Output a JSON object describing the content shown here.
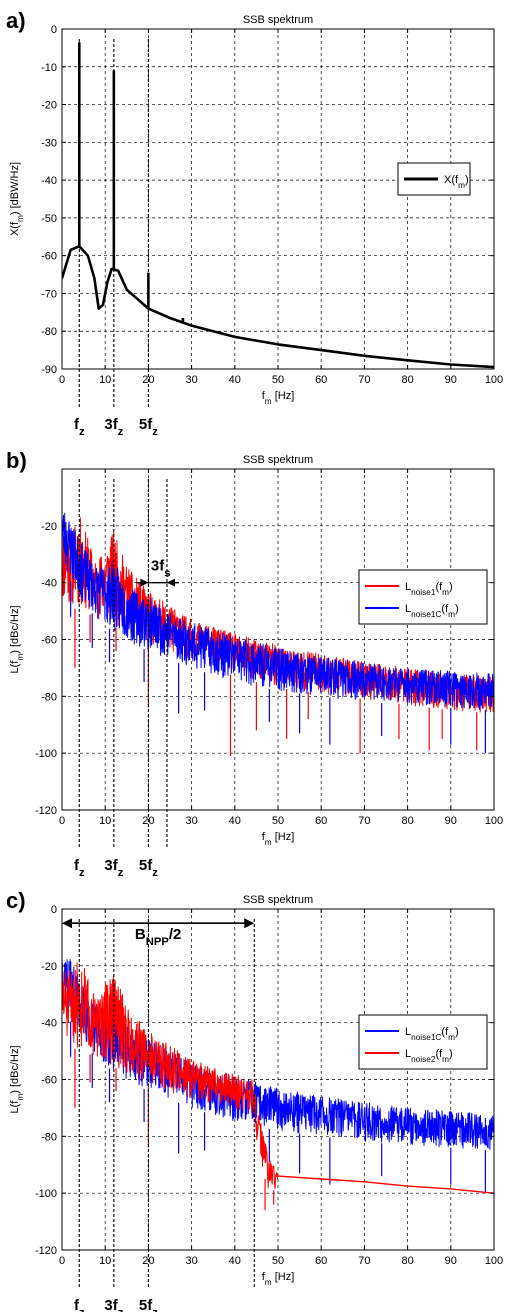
{
  "colors": {
    "red": "#ff0000",
    "blue": "#0000ff",
    "black": "#000000"
  },
  "chart_data": [
    {
      "panel_label": "a)",
      "type": "line",
      "title": "SSB spektrum",
      "xlabel": {
        "base": "f",
        "sub": "m",
        "rest": " [Hz]"
      },
      "ylabel": {
        "base": "X(f",
        "sub": "m",
        "rest": ") [dBW/Hz]"
      },
      "xlim": [
        0,
        100
      ],
      "ylim": [
        -90,
        0
      ],
      "xticks": [
        "0",
        "10",
        "20",
        "30",
        "40",
        "50",
        "60",
        "70",
        "80",
        "90",
        "100"
      ],
      "yticks": [
        "0",
        "-10",
        "-20",
        "-30",
        "-40",
        "-50",
        "-60",
        "-70",
        "-80",
        "-90"
      ],
      "grid": true,
      "legend_position": "right",
      "series": [
        {
          "name": {
            "base": "X(f",
            "sub": "m",
            "rest": ")"
          },
          "color": "#000000",
          "kind": "smooth",
          "x": [
            0,
            2,
            4,
            6,
            7.5,
            8.5,
            9.5,
            10.5,
            11.5,
            13,
            15,
            17,
            20,
            25,
            30,
            40,
            50,
            60,
            70,
            80,
            90,
            100
          ],
          "y": [
            -66,
            -58.5,
            -57.5,
            -60,
            -66,
            -74,
            -73,
            -67,
            -63.5,
            -64,
            -69,
            -71,
            -74,
            -76.5,
            -78.5,
            -81.5,
            -83.5,
            -85,
            -86.5,
            -87.7,
            -88.8,
            -89.5
          ],
          "peaks": [
            {
              "x": 4,
              "y": -3.5
            },
            {
              "x": 12,
              "y": -11
            },
            {
              "x": 20,
              "y": -64.5
            },
            {
              "x": 28,
              "y": -76.5
            }
          ]
        }
      ],
      "vertical_markers": [
        {
          "x": 4,
          "label": {
            "base": "f",
            "sub": "z",
            "pre": ""
          }
        },
        {
          "x": 12,
          "label": {
            "base": "f",
            "sub": "z",
            "pre": "3"
          }
        },
        {
          "x": 20,
          "label": {
            "base": "f",
            "sub": "z",
            "pre": "5"
          }
        }
      ]
    },
    {
      "panel_label": "b)",
      "type": "line",
      "title": "SSB spektrum",
      "xlabel": {
        "base": "f",
        "sub": "m",
        "rest": " [Hz]"
      },
      "ylabel": {
        "base": "L(f",
        "sub": "m",
        "rest": ") [dBc/Hz]"
      },
      "xlim": [
        0,
        100
      ],
      "ylim": [
        -120,
        0
      ],
      "xticks": [
        "0",
        "10",
        "20",
        "30",
        "40",
        "50",
        "60",
        "70",
        "80",
        "90",
        "100"
      ],
      "yticks": [
        "-20",
        "-40",
        "-60",
        "-80",
        "-100",
        "-120"
      ],
      "grid": true,
      "legend_position": "right",
      "series": [
        {
          "name": {
            "base": "L",
            "sub": "noise1",
            "rest": "(f",
            "sub2": "m",
            "rest2": ")"
          },
          "color": "#ff0000",
          "kind": "noise",
          "seed": 11,
          "step": 0.07,
          "cutoff": 100,
          "upper": [
            [
              0,
              -20
            ],
            [
              2,
              -22
            ],
            [
              4,
              -16
            ],
            [
              6,
              -24
            ],
            [
              8,
              -33
            ],
            [
              10,
              -26
            ],
            [
              12,
              -22
            ],
            [
              14,
              -30
            ],
            [
              16,
              -36
            ],
            [
              20,
              -43
            ],
            [
              25,
              -48
            ],
            [
              30,
              -53
            ],
            [
              40,
              -58
            ],
            [
              50,
              -62
            ],
            [
              60,
              -65
            ],
            [
              70,
              -68
            ],
            [
              80,
              -70
            ],
            [
              90,
              -72
            ],
            [
              100,
              -73
            ]
          ],
          "lower": [
            [
              0,
              -48
            ],
            [
              5,
              -50
            ],
            [
              10,
              -54
            ],
            [
              15,
              -58
            ],
            [
              20,
              -62
            ],
            [
              30,
              -67
            ],
            [
              40,
              -73
            ],
            [
              50,
              -77
            ],
            [
              60,
              -79
            ],
            [
              70,
              -81
            ],
            [
              80,
              -83
            ],
            [
              90,
              -85
            ],
            [
              100,
              -86
            ]
          ],
          "spikes": [
            [
              3,
              -70
            ],
            [
              6.5,
              -61
            ],
            [
              12.5,
              -64
            ],
            [
              20,
              -84
            ],
            [
              39,
              -101
            ],
            [
              45,
              -92
            ],
            [
              52,
              -95
            ],
            [
              57,
              -88
            ],
            [
              69,
              -100
            ],
            [
              78,
              -95
            ],
            [
              85,
              -99
            ],
            [
              88,
              -95
            ],
            [
              96,
              -99
            ]
          ]
        },
        {
          "name": {
            "base": "L",
            "sub": "noise1C",
            "rest": "(f",
            "sub2": "m",
            "rest2": ")"
          },
          "color": "#0000ff",
          "kind": "noise",
          "seed": 23,
          "step": 0.07,
          "cutoff": 100,
          "upper": [
            [
              0,
              -12
            ],
            [
              2,
              -18
            ],
            [
              4,
              -24
            ],
            [
              6,
              -30
            ],
            [
              8,
              -34
            ],
            [
              10,
              -34
            ],
            [
              12,
              -32
            ],
            [
              14,
              -38
            ],
            [
              16,
              -42
            ],
            [
              20,
              -45
            ],
            [
              25,
              -50
            ],
            [
              30,
              -54
            ],
            [
              40,
              -59
            ],
            [
              50,
              -63
            ],
            [
              60,
              -66
            ],
            [
              70,
              -68
            ],
            [
              80,
              -70
            ],
            [
              90,
              -71
            ],
            [
              100,
              -72
            ]
          ],
          "lower": [
            [
              0,
              -34
            ],
            [
              5,
              -48
            ],
            [
              10,
              -55
            ],
            [
              15,
              -61
            ],
            [
              20,
              -64
            ],
            [
              30,
              -70
            ],
            [
              40,
              -75
            ],
            [
              50,
              -78
            ],
            [
              60,
              -80
            ],
            [
              70,
              -82
            ],
            [
              80,
              -83
            ],
            [
              90,
              -84
            ],
            [
              100,
              -85
            ]
          ],
          "spikes": [
            [
              2,
              -52
            ],
            [
              7,
              -63
            ],
            [
              11,
              -68
            ],
            [
              19,
              -75
            ],
            [
              27,
              -86
            ],
            [
              33,
              -85
            ],
            [
              48,
              -89
            ],
            [
              55,
              -93
            ],
            [
              62,
              -97
            ],
            [
              74,
              -94
            ],
            [
              90,
              -97
            ],
            [
              98,
              -100
            ]
          ]
        }
      ],
      "vertical_markers": [
        {
          "x": 4,
          "label": {
            "base": "f",
            "sub": "z",
            "pre": ""
          }
        },
        {
          "x": 12,
          "label": {
            "base": "f",
            "sub": "z",
            "pre": "3"
          }
        },
        {
          "x": 20,
          "label": {
            "base": "f",
            "sub": "z",
            "pre": "5"
          }
        },
        {
          "x": 24.3,
          "label": null
        }
      ],
      "annotations": [
        {
          "kind": "double-arrow-in",
          "x1": 20,
          "x2": 24.3,
          "y": -40,
          "label": {
            "base": "f",
            "sub": "s",
            "pre": "3"
          }
        }
      ]
    },
    {
      "panel_label": "c)",
      "type": "line",
      "title": "SSB spektrum",
      "xlabel": {
        "base": "f",
        "sub": "m",
        "rest": " [Hz]"
      },
      "ylabel": {
        "base": "L(f",
        "sub": "m",
        "rest": ") [dBc/Hz]"
      },
      "xlim": [
        0,
        100
      ],
      "ylim": [
        -120,
        0
      ],
      "xticks": [
        "0",
        "10",
        "20",
        "30",
        "40",
        "50",
        "60",
        "70",
        "80",
        "90",
        "100"
      ],
      "yticks": [
        "0",
        "-20",
        "-40",
        "-60",
        "-80",
        "-100",
        "-120"
      ],
      "grid": true,
      "legend_position": "right",
      "series": [
        {
          "name": {
            "base": "L",
            "sub": "noise1C",
            "rest": "(f",
            "sub2": "m",
            "rest2": ")"
          },
          "color": "#0000ff",
          "kind": "noise",
          "seed": 37,
          "step": 0.07,
          "cutoff": 100,
          "upper": [
            [
              0,
              -12
            ],
            [
              2,
              -18
            ],
            [
              4,
              -24
            ],
            [
              6,
              -30
            ],
            [
              8,
              -34
            ],
            [
              10,
              -34
            ],
            [
              12,
              -32
            ],
            [
              14,
              -38
            ],
            [
              16,
              -42
            ],
            [
              20,
              -45
            ],
            [
              25,
              -50
            ],
            [
              30,
              -54
            ],
            [
              40,
              -59
            ],
            [
              50,
              -63
            ],
            [
              60,
              -66
            ],
            [
              70,
              -68
            ],
            [
              80,
              -70
            ],
            [
              90,
              -71
            ],
            [
              100,
              -72
            ]
          ],
          "lower": [
            [
              0,
              -34
            ],
            [
              5,
              -48
            ],
            [
              10,
              -55
            ],
            [
              15,
              -61
            ],
            [
              20,
              -64
            ],
            [
              30,
              -70
            ],
            [
              40,
              -75
            ],
            [
              50,
              -78
            ],
            [
              60,
              -80
            ],
            [
              70,
              -82
            ],
            [
              80,
              -83
            ],
            [
              90,
              -84
            ],
            [
              100,
              -85
            ]
          ],
          "spikes": [
            [
              2,
              -52
            ],
            [
              7,
              -63
            ],
            [
              11,
              -68
            ],
            [
              19,
              -75
            ],
            [
              27,
              -86
            ],
            [
              33,
              -85
            ],
            [
              48,
              -89
            ],
            [
              55,
              -93
            ],
            [
              62,
              -97
            ],
            [
              74,
              -94
            ],
            [
              90,
              -97
            ],
            [
              98,
              -100
            ]
          ]
        },
        {
          "name": {
            "base": "L",
            "sub": "noise2",
            "rest": "(f",
            "sub2": "m",
            "rest2": ")"
          },
          "color": "#ff0000",
          "kind": "noise",
          "seed": 51,
          "step": 0.07,
          "cutoff": 50,
          "upper": [
            [
              0,
              -20
            ],
            [
              2,
              -22
            ],
            [
              4,
              -16
            ],
            [
              6,
              -24
            ],
            [
              8,
              -33
            ],
            [
              10,
              -26
            ],
            [
              12,
              -22
            ],
            [
              14,
              -30
            ],
            [
              16,
              -36
            ],
            [
              20,
              -43
            ],
            [
              25,
              -48
            ],
            [
              30,
              -53
            ],
            [
              40,
              -58
            ],
            [
              44,
              -60
            ],
            [
              46,
              -75
            ],
            [
              48,
              -88
            ],
            [
              50,
              -93
            ]
          ],
          "lower": [
            [
              0,
              -48
            ],
            [
              5,
              -50
            ],
            [
              10,
              -54
            ],
            [
              15,
              -58
            ],
            [
              20,
              -62
            ],
            [
              30,
              -67
            ],
            [
              40,
              -71
            ],
            [
              44,
              -73
            ],
            [
              46,
              -90
            ],
            [
              48,
              -100
            ],
            [
              50,
              -98
            ]
          ],
          "spikes": [
            [
              3,
              -70
            ],
            [
              6.5,
              -61
            ],
            [
              12.5,
              -64
            ],
            [
              20,
              -84
            ],
            [
              47,
              -106
            ],
            [
              49,
              -104
            ]
          ],
          "tail_x": [
            50,
            60,
            70,
            80,
            90,
            100
          ],
          "tail_y": [
            -94,
            -95,
            -96,
            -97.5,
            -98.5,
            -100
          ]
        }
      ],
      "vertical_markers": [
        {
          "x": 4,
          "label": {
            "base": "f",
            "sub": "z",
            "pre": ""
          }
        },
        {
          "x": 12,
          "label": {
            "base": "f",
            "sub": "z",
            "pre": "3"
          }
        },
        {
          "x": 20,
          "label": {
            "base": "f",
            "sub": "z",
            "pre": "5"
          }
        },
        {
          "x": 44.5,
          "label": null
        }
      ],
      "annotations": [
        {
          "kind": "double-arrow-out",
          "x1": 0,
          "x2": 44.5,
          "y": -5,
          "label": {
            "base": "B",
            "sub": "NPP",
            "rest": "/2"
          }
        }
      ]
    }
  ]
}
